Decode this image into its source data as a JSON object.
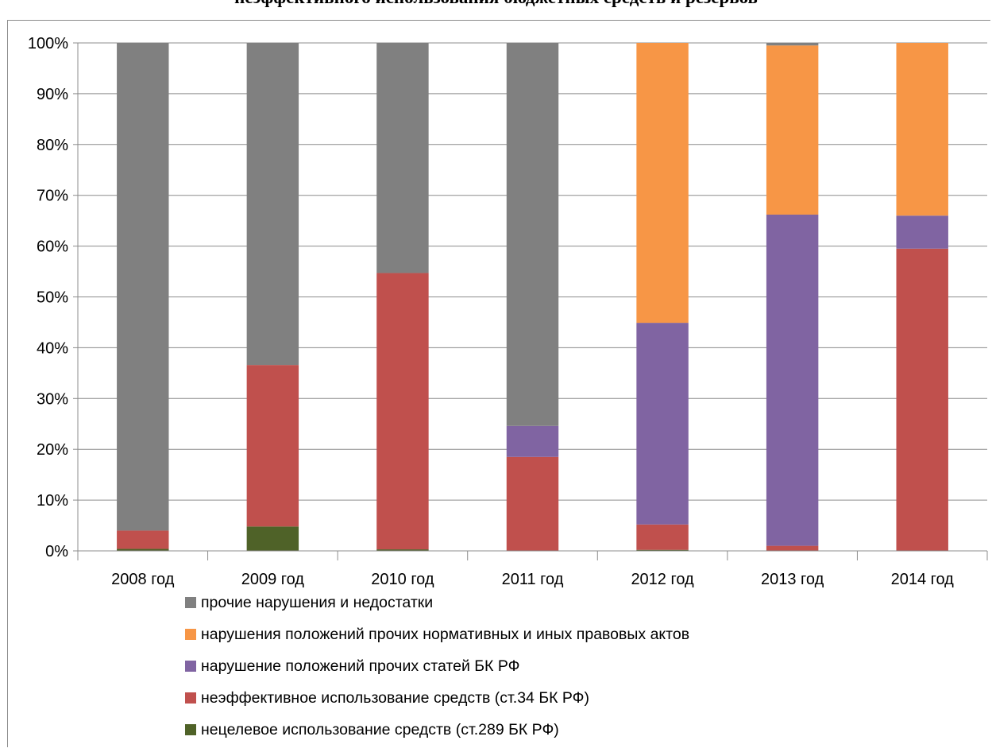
{
  "chart_data": {
    "type": "bar",
    "stacked": true,
    "normalized": true,
    "title": "неэффективного использования бюджетных средств и резервов",
    "categories": [
      "2008 год",
      "2009 год",
      "2010 год",
      "2011 год",
      "2012 год",
      "2013 год",
      "2014 год"
    ],
    "y_ticks": [
      "0%",
      "10%",
      "20%",
      "30%",
      "40%",
      "50%",
      "60%",
      "70%",
      "80%",
      "90%",
      "100%"
    ],
    "ylim": [
      0,
      100
    ],
    "grid": true,
    "legend_position": "bottom",
    "series": [
      {
        "name": "нецелевое использование средств (ст.289 БК РФ)",
        "color": "#4f6228",
        "values": [
          0.4,
          4.8,
          0.3,
          0.0,
          0.2,
          0.0,
          0.0
        ]
      },
      {
        "name": "неэффективное использование средств (ст.34 БК РФ)",
        "color": "#c0504d",
        "values": [
          3.6,
          31.8,
          54.4,
          18.5,
          5.0,
          1.0,
          59.5
        ]
      },
      {
        "name": "нарушение положений прочих статей БК РФ",
        "color": "#8064a2",
        "values": [
          0.0,
          0.0,
          0.0,
          6.1,
          39.7,
          65.2,
          6.5
        ]
      },
      {
        "name": "нарушения положений прочих нормативных и иных правовых актов",
        "color": "#f79646",
        "values": [
          0.0,
          0.0,
          0.0,
          0.0,
          55.1,
          33.3,
          34.0
        ]
      },
      {
        "name": "прочие нарушения и недостатки",
        "color": "#808080",
        "values": [
          96.0,
          63.4,
          45.3,
          75.4,
          0.0,
          0.5,
          0.0
        ]
      }
    ],
    "legend_order": [
      4,
      3,
      2,
      1,
      0
    ]
  }
}
